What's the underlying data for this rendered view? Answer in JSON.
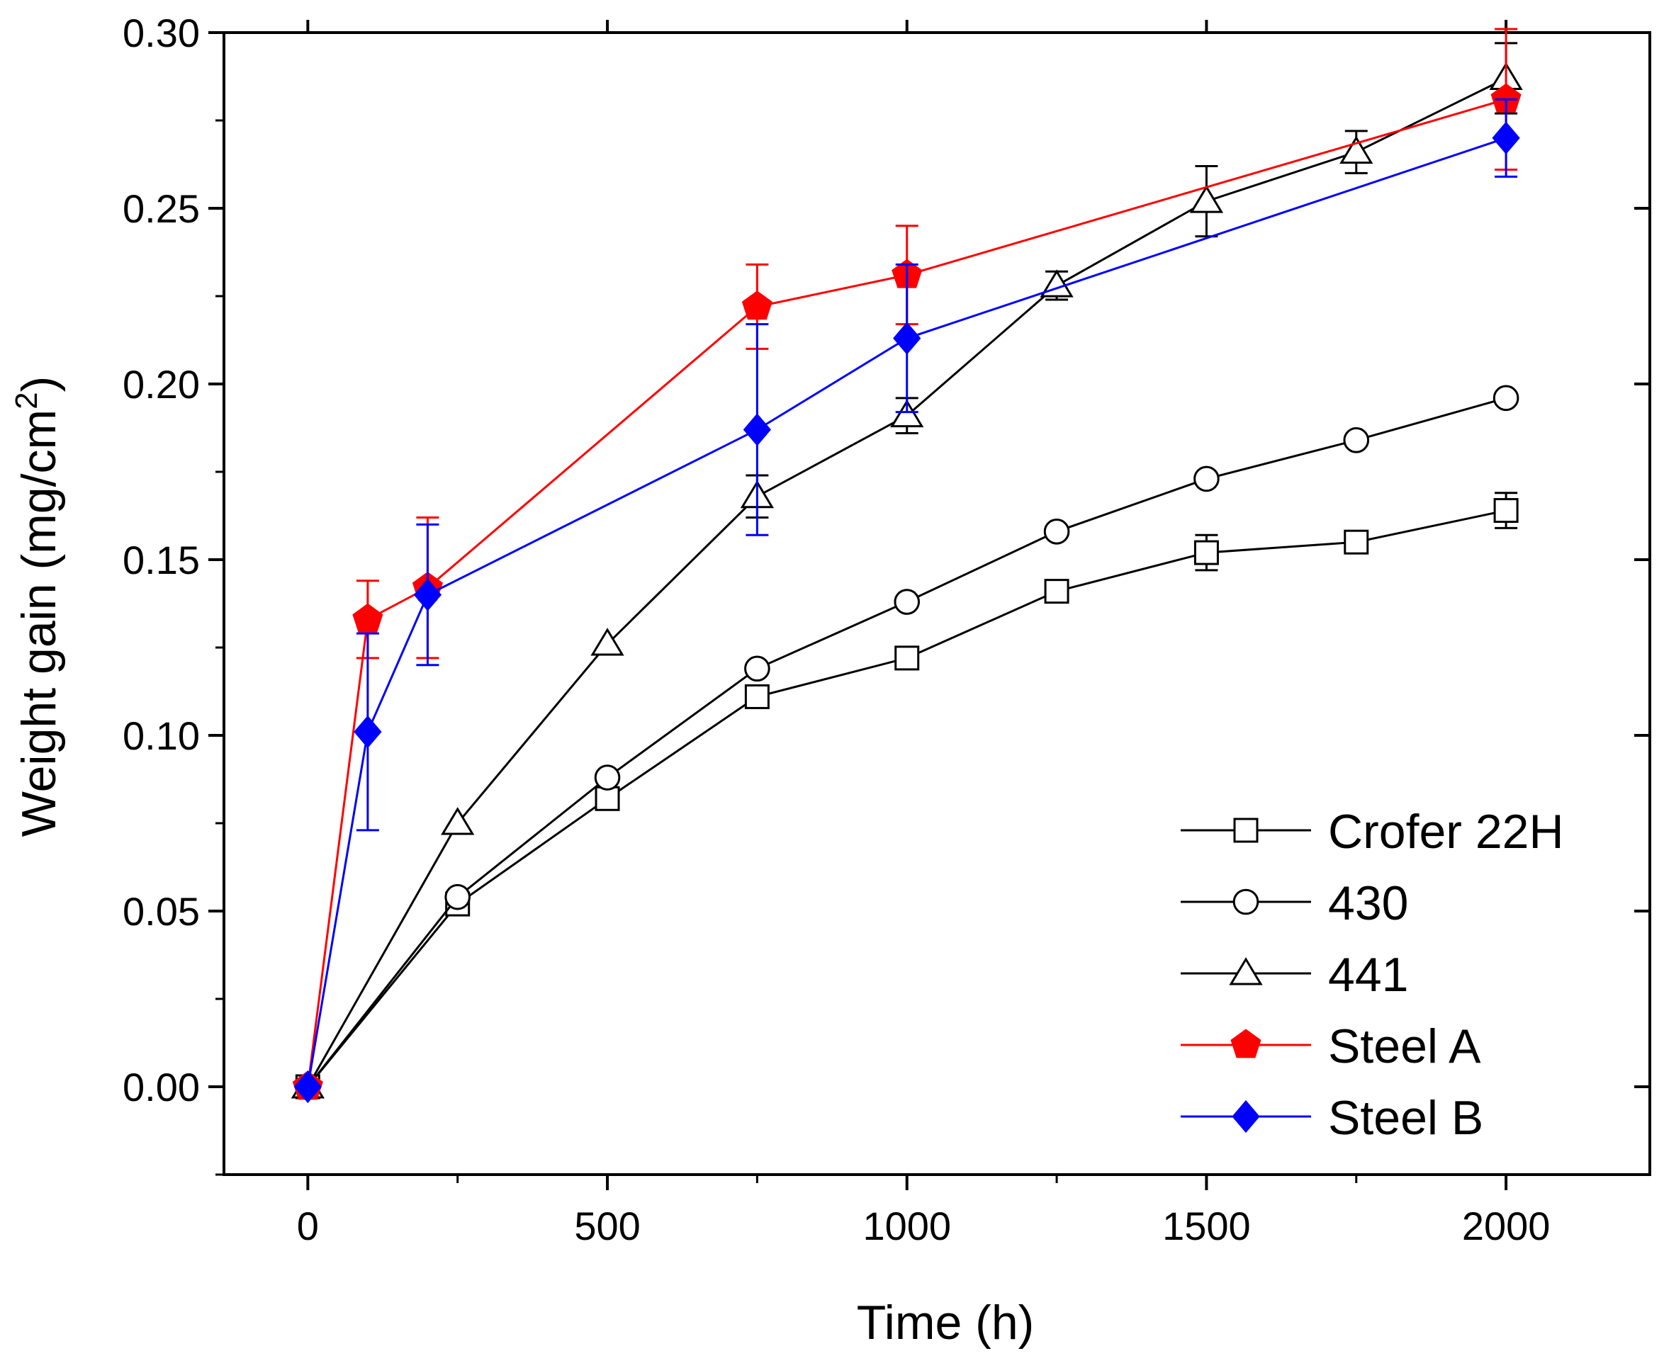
{
  "chart_data": {
    "type": "line",
    "title": "",
    "xlabel": "Time (h)",
    "ylabel_main": "Weight gain (mg/cm",
    "ylabel_sup": "2",
    "ylabel_close": ")",
    "xlim": [
      -140,
      2240
    ],
    "ylim": [
      -0.025,
      0.3
    ],
    "xticks": [
      0,
      500,
      1000,
      1500,
      2000
    ],
    "xtick_labels": [
      "0",
      "500",
      "1000",
      "1500",
      "2000"
    ],
    "yticks": [
      0.0,
      0.05,
      0.1,
      0.15,
      0.2,
      0.25,
      0.3
    ],
    "ytick_labels": [
      "0.00",
      "0.05",
      "0.10",
      "0.15",
      "0.20",
      "0.25",
      "0.30"
    ],
    "grid": false,
    "legend_position": "bottom-right",
    "series": [
      {
        "name": "Crofer 22H",
        "color": "#000000",
        "marker": "square",
        "filled": false,
        "x": [
          0,
          250,
          500,
          750,
          1000,
          1250,
          1500,
          1750,
          2000
        ],
        "y": [
          0.0,
          0.052,
          0.082,
          0.111,
          0.122,
          0.141,
          0.152,
          0.155,
          0.164
        ],
        "err": [
          0,
          0,
          0,
          0,
          0,
          0.002,
          0.005,
          0,
          0.005
        ]
      },
      {
        "name": "430",
        "color": "#000000",
        "marker": "circle",
        "filled": false,
        "x": [
          0,
          250,
          500,
          750,
          1000,
          1250,
          1500,
          1750,
          2000
        ],
        "y": [
          0.0,
          0.054,
          0.088,
          0.119,
          0.138,
          0.158,
          0.173,
          0.184,
          0.196
        ],
        "err": [
          0,
          0,
          0,
          0,
          0,
          0,
          0,
          0,
          0
        ]
      },
      {
        "name": "441",
        "color": "#000000",
        "marker": "triangle",
        "filled": false,
        "x": [
          0,
          250,
          500,
          750,
          1000,
          1250,
          1500,
          1750,
          2000
        ],
        "y": [
          0.0,
          0.075,
          0.126,
          0.168,
          0.191,
          0.228,
          0.252,
          0.266,
          0.287
        ],
        "err": [
          0,
          0,
          0,
          0.006,
          0.005,
          0.004,
          0.01,
          0.006,
          0.01
        ]
      },
      {
        "name": "Steel A",
        "color": "#ff0000",
        "marker": "pentagon",
        "filled": true,
        "x": [
          0,
          100,
          200,
          750,
          1000,
          2000
        ],
        "y": [
          0.0,
          0.133,
          0.142,
          0.222,
          0.231,
          0.281
        ],
        "err": [
          0,
          0.011,
          0.02,
          0.012,
          0.014,
          0.02
        ]
      },
      {
        "name": "Steel B",
        "color": "#0000ff",
        "marker": "diamond",
        "filled": true,
        "x": [
          0,
          100,
          200,
          750,
          1000,
          2000
        ],
        "y": [
          0.0,
          0.101,
          0.14,
          0.187,
          0.213,
          0.27
        ],
        "err": [
          0,
          0.028,
          0.02,
          0.03,
          0.021,
          0.011
        ]
      }
    ]
  }
}
